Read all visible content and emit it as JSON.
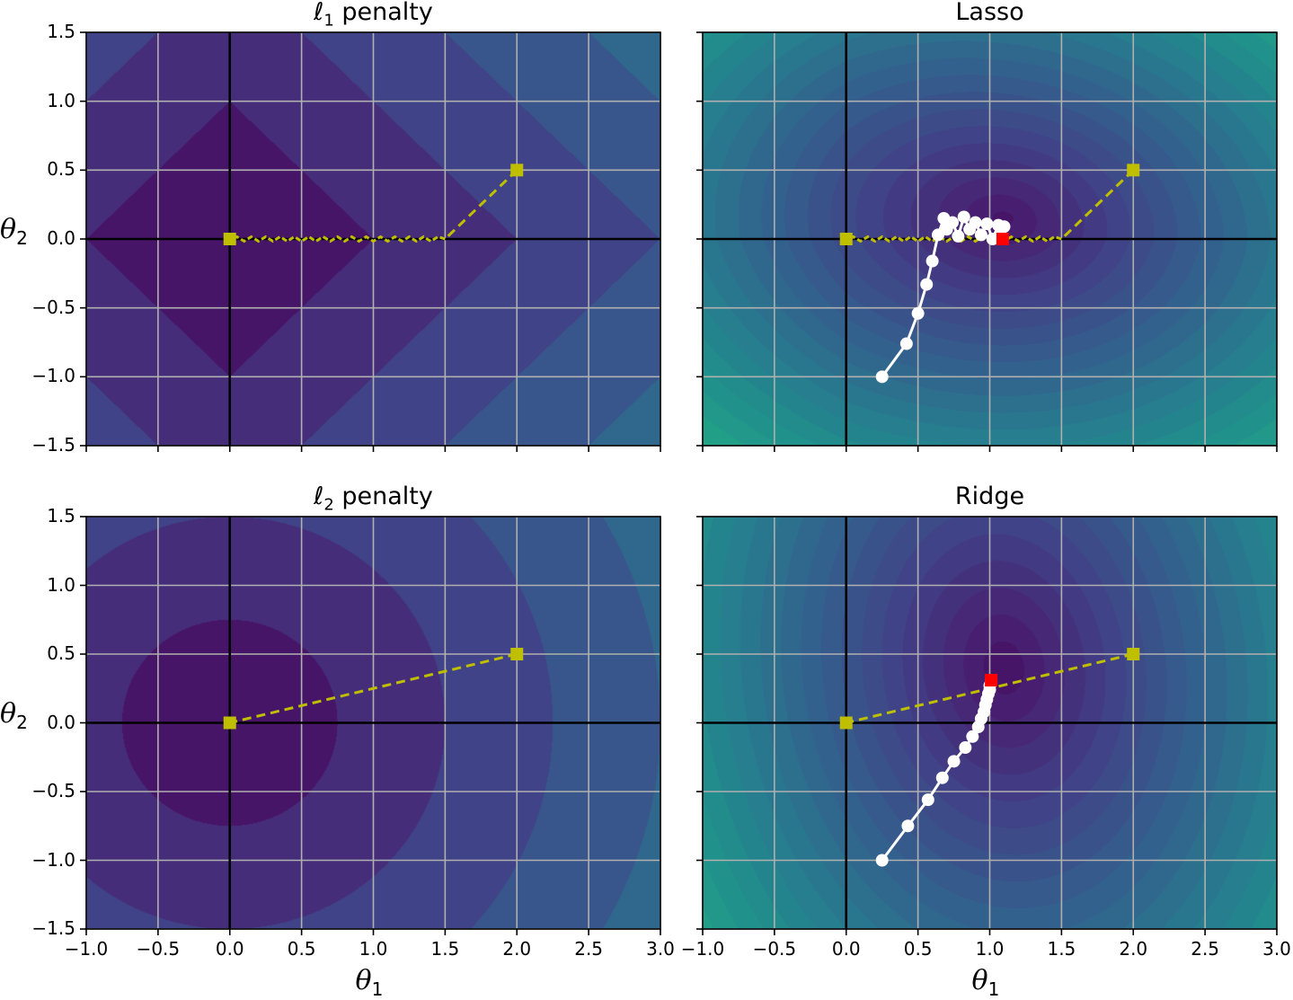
{
  "figure": {
    "panels": [
      {
        "id": "l1",
        "title_prefix": "ℓ",
        "title_sub": "1",
        "title_suffix": " penalty"
      },
      {
        "id": "lasso",
        "title_prefix": "Lasso",
        "title_sub": "",
        "title_suffix": ""
      },
      {
        "id": "l2",
        "title_prefix": "ℓ",
        "title_sub": "2",
        "title_suffix": " penalty"
      },
      {
        "id": "ridge",
        "title_prefix": "Ridge",
        "title_sub": "",
        "title_suffix": ""
      }
    ],
    "xlabel": {
      "symbol": "θ",
      "sub": "1"
    },
    "ylabel": {
      "symbol": "θ",
      "sub": "2"
    }
  },
  "chart_data": [
    {
      "type": "heatmap",
      "title": "ℓ1 penalty",
      "xlabel": "θ1",
      "ylabel": "θ2",
      "xlim": [
        -1.0,
        3.0
      ],
      "ylim": [
        -1.5,
        1.5
      ],
      "xticks": [
        "−1.0",
        "−0.5",
        "0.0",
        "0.5",
        "1.0",
        "1.5",
        "2.0",
        "2.5",
        "3.0"
      ],
      "yticks": [
        "−1.5",
        "−1.0",
        "−0.5",
        "0.0",
        "0.5",
        "1.0",
        "1.5"
      ],
      "grid": true,
      "colormap": "viridis",
      "contour_function": "|θ1| + |θ2|",
      "contour_levels": [
        0,
        1,
        2,
        3,
        4,
        5
      ],
      "path": {
        "style": "yellow dashed",
        "color": "#bfbf00",
        "points": [
          [
            2.0,
            0.5
          ],
          [
            1.5,
            0.0
          ],
          [
            0.0,
            0.0
          ]
        ],
        "zigzag_segment": [
          [
            1.5,
            0.0
          ],
          [
            0.0,
            0.0
          ]
        ]
      },
      "markers": [
        {
          "x": 2.0,
          "y": 0.5,
          "shape": "square",
          "color": "#bfbf00"
        },
        {
          "x": 0.0,
          "y": 0.0,
          "shape": "square",
          "color": "#bfbf00"
        }
      ]
    },
    {
      "type": "heatmap",
      "title": "Lasso",
      "xlabel": "θ1",
      "ylabel": "",
      "xlim": [
        -1.0,
        3.0
      ],
      "ylim": [
        -1.5,
        1.5
      ],
      "xticks": [
        "−1.0",
        "−0.5",
        "0.0",
        "0.5",
        "1.0",
        "1.5",
        "2.0",
        "2.5",
        "3.0"
      ],
      "grid": true,
      "colormap": "viridis",
      "contour_function": "MSE + ℓ1 regularization",
      "contour_center": [
        1.1,
        0.15
      ],
      "contour_levels_count": 14,
      "reference_path": {
        "style": "yellow dashed",
        "color": "#bfbf00",
        "points": [
          [
            2.0,
            0.5
          ],
          [
            1.5,
            0.0
          ],
          [
            0.0,
            0.0
          ]
        ]
      },
      "gd_path": {
        "color": "#ffffff",
        "marker": "circle",
        "points": [
          [
            0.25,
            -1.0
          ],
          [
            0.42,
            -0.76
          ],
          [
            0.5,
            -0.54
          ],
          [
            0.56,
            -0.33
          ],
          [
            0.6,
            -0.16
          ],
          [
            0.64,
            0.03
          ],
          [
            0.68,
            0.15
          ],
          [
            0.7,
            0.07
          ],
          [
            0.74,
            0.12
          ],
          [
            0.78,
            0.02
          ],
          [
            0.82,
            0.16
          ],
          [
            0.86,
            0.07
          ],
          [
            0.9,
            0.12
          ],
          [
            0.94,
            0.03
          ],
          [
            0.98,
            0.11
          ],
          [
            1.02,
            0.0
          ],
          [
            1.06,
            0.1
          ],
          [
            1.08,
            0.02
          ],
          [
            1.1,
            0.09
          ],
          [
            1.09,
            0.0
          ]
        ]
      },
      "optimum": {
        "x": 1.09,
        "y": 0.0,
        "shape": "square",
        "color": "#ff0000"
      },
      "markers": [
        {
          "x": 2.0,
          "y": 0.5,
          "shape": "square",
          "color": "#bfbf00"
        },
        {
          "x": 0.0,
          "y": 0.0,
          "shape": "square",
          "color": "#bfbf00"
        }
      ]
    },
    {
      "type": "heatmap",
      "title": "ℓ2 penalty",
      "xlabel": "θ1",
      "ylabel": "θ2",
      "xlim": [
        -1.0,
        3.0
      ],
      "ylim": [
        -1.5,
        1.5
      ],
      "xticks": [
        "−1.0",
        "−0.5",
        "0.0",
        "0.5",
        "1.0",
        "1.5",
        "2.0",
        "2.5",
        "3.0"
      ],
      "yticks": [
        "−1.5",
        "−1.0",
        "−0.5",
        "0.0",
        "0.5",
        "1.0",
        "1.5"
      ],
      "grid": true,
      "colormap": "viridis",
      "contour_function": "θ1² + θ2²",
      "contour_radii": [
        0.75,
        1.5,
        2.25,
        3.0
      ],
      "path": {
        "style": "yellow dashed",
        "color": "#bfbf00",
        "points": [
          [
            2.0,
            0.5
          ],
          [
            0.0,
            0.0
          ]
        ]
      },
      "markers": [
        {
          "x": 2.0,
          "y": 0.5,
          "shape": "square",
          "color": "#bfbf00"
        },
        {
          "x": 0.0,
          "y": 0.0,
          "shape": "square",
          "color": "#bfbf00"
        }
      ]
    },
    {
      "type": "heatmap",
      "title": "Ridge",
      "xlabel": "θ1",
      "ylabel": "",
      "xlim": [
        -1.0,
        3.0
      ],
      "ylim": [
        -1.5,
        1.5
      ],
      "xticks": [
        "−1.0",
        "−0.5",
        "0.0",
        "0.5",
        "1.0",
        "1.5",
        "2.0",
        "2.5",
        "3.0"
      ],
      "grid": true,
      "colormap": "viridis",
      "contour_function": "MSE + ℓ2 regularization",
      "contour_center": [
        1.1,
        0.4
      ],
      "contour_levels_count": 14,
      "reference_path": {
        "style": "yellow dashed",
        "color": "#bfbf00",
        "points": [
          [
            2.0,
            0.5
          ],
          [
            0.0,
            0.0
          ]
        ]
      },
      "gd_path": {
        "color": "#ffffff",
        "marker": "circle",
        "points": [
          [
            0.25,
            -1.0
          ],
          [
            0.43,
            -0.75
          ],
          [
            0.57,
            -0.56
          ],
          [
            0.67,
            -0.4
          ],
          [
            0.75,
            -0.28
          ],
          [
            0.83,
            -0.18
          ],
          [
            0.88,
            -0.1
          ],
          [
            0.92,
            -0.03
          ],
          [
            0.94,
            0.03
          ],
          [
            0.96,
            0.08
          ],
          [
            0.97,
            0.13
          ],
          [
            0.98,
            0.17
          ],
          [
            0.99,
            0.21
          ],
          [
            1.0,
            0.24
          ],
          [
            1.0,
            0.27
          ],
          [
            1.01,
            0.29
          ],
          [
            1.01,
            0.31
          ]
        ]
      },
      "optimum": {
        "x": 1.01,
        "y": 0.31,
        "shape": "square",
        "color": "#ff0000"
      },
      "markers": [
        {
          "x": 2.0,
          "y": 0.5,
          "shape": "square",
          "color": "#bfbf00"
        },
        {
          "x": 0.0,
          "y": 0.0,
          "shape": "square",
          "color": "#bfbf00"
        }
      ]
    }
  ]
}
